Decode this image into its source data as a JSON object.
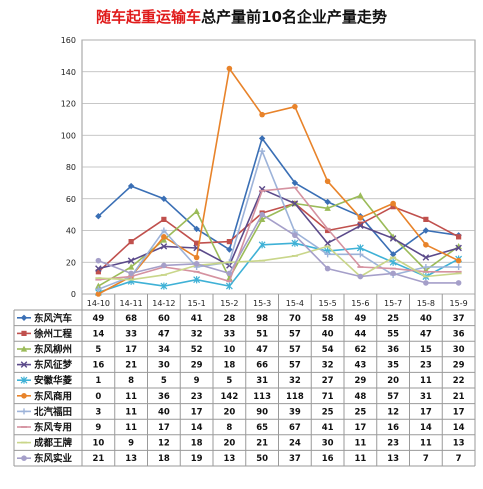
{
  "title_highlight": "随车起重运输车",
  "title_rest": "总产量前10名企业产量走势",
  "chart_data": {
    "type": "line",
    "categories": [
      "14-10",
      "14-11",
      "14-12",
      "15-1",
      "15-2",
      "15-3",
      "15-4",
      "15-5",
      "15-6",
      "15-7",
      "15-8",
      "15-9"
    ],
    "ylim": [
      0,
      160
    ],
    "yticks": [
      0,
      20,
      40,
      60,
      80,
      100,
      120,
      140,
      160
    ],
    "grid": true,
    "series": [
      {
        "name": "东风汽车",
        "color": "#3a6fb5",
        "marker": "diamond",
        "values": [
          49,
          68,
          60,
          41,
          28,
          98,
          70,
          58,
          49,
          25,
          40,
          37
        ]
      },
      {
        "name": "徐州工程",
        "color": "#c0504d",
        "marker": "square",
        "values": [
          14,
          33,
          47,
          32,
          33,
          51,
          57,
          40,
          44,
          55,
          47,
          36
        ]
      },
      {
        "name": "东风柳州",
        "color": "#9bbb59",
        "marker": "triangle",
        "values": [
          5,
          17,
          34,
          52,
          10,
          47,
          57,
          54,
          62,
          36,
          15,
          30
        ]
      },
      {
        "name": "东风征梦",
        "color": "#5b4a8a",
        "marker": "x",
        "values": [
          16,
          21,
          30,
          29,
          18,
          66,
          57,
          32,
          43,
          35,
          23,
          29
        ]
      },
      {
        "name": "安徽华菱",
        "color": "#3fb1d6",
        "marker": "star",
        "values": [
          1,
          8,
          5,
          9,
          5,
          31,
          32,
          27,
          29,
          20,
          11,
          22
        ]
      },
      {
        "name": "东风商用",
        "color": "#e8832a",
        "marker": "circle",
        "values": [
          0,
          11,
          36,
          23,
          142,
          113,
          118,
          71,
          48,
          57,
          31,
          21
        ]
      },
      {
        "name": "北汽福田",
        "color": "#9db3d9",
        "marker": "plus",
        "values": [
          3,
          11,
          40,
          17,
          20,
          90,
          39,
          25,
          25,
          12,
          17,
          17
        ]
      },
      {
        "name": "东风专用",
        "color": "#d592a0",
        "marker": "dash",
        "values": [
          9,
          11,
          17,
          14,
          8,
          65,
          67,
          41,
          17,
          16,
          14,
          14
        ]
      },
      {
        "name": "成都王牌",
        "color": "#c9d68a",
        "marker": "dash",
        "values": [
          10,
          9,
          12,
          18,
          20,
          21,
          24,
          30,
          11,
          23,
          11,
          13
        ]
      },
      {
        "name": "东风实业",
        "color": "#a59fc9",
        "marker": "circle",
        "values": [
          21,
          13,
          18,
          19,
          13,
          50,
          37,
          16,
          11,
          13,
          7,
          7
        ]
      }
    ]
  }
}
